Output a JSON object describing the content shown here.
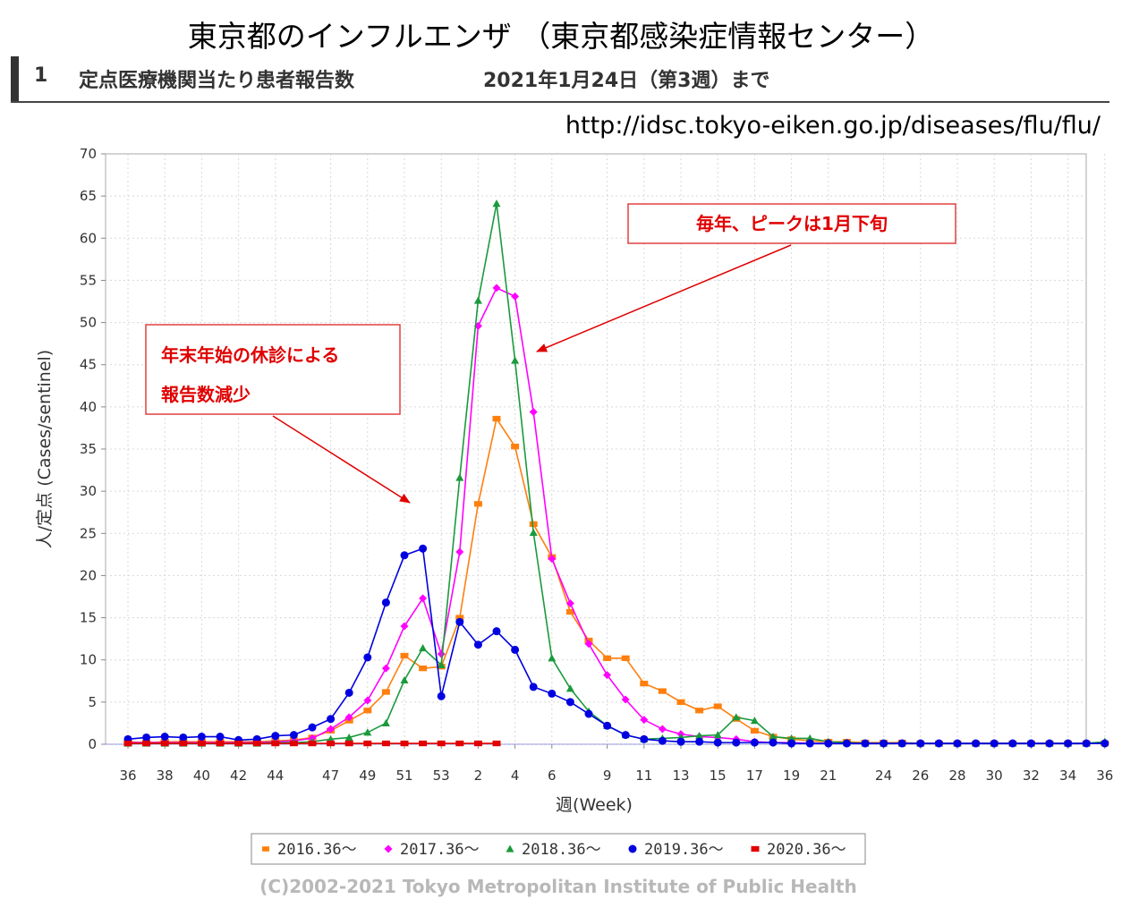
{
  "header": {
    "title": "東京都のインフルエンザ （東京都感染症情報センター）",
    "section_number": "1",
    "section_title": "定点医療機関当たり患者報告数",
    "section_date": "2021年1月24日（第3週）まで",
    "url": "http://idsc.tokyo-eiken.go.jp/diseases/flu/flu/"
  },
  "footer": {
    "copyright": "(C)2002-2021 Tokyo Metropolitan Institute of Public Health"
  },
  "chart_data": {
    "type": "line",
    "title": "",
    "xlabel": "週(Week)",
    "ylabel": "人/定点 (Cases/sentinel)",
    "ylim": [
      0,
      70
    ],
    "yticks": [
      0,
      5,
      10,
      15,
      20,
      25,
      30,
      35,
      40,
      45,
      50,
      55,
      60,
      65,
      70
    ],
    "xtick_labels": [
      "36",
      "38",
      "40",
      "42",
      "44",
      "47",
      "49",
      "51",
      "53",
      "2",
      "4",
      "6",
      "9",
      "11",
      "13",
      "15",
      "17",
      "19",
      "21",
      "24",
      "26",
      "28",
      "30",
      "32",
      "34",
      "36"
    ],
    "x_weeks": [
      "36",
      "37",
      "38",
      "39",
      "40",
      "41",
      "42",
      "43",
      "44",
      "45",
      "46",
      "47",
      "48",
      "49",
      "50",
      "51",
      "52",
      "53",
      "1",
      "2",
      "3",
      "4",
      "5",
      "6",
      "7",
      "8",
      "9",
      "10",
      "11",
      "12",
      "13",
      "14",
      "15",
      "16",
      "17",
      "18",
      "19",
      "20",
      "21",
      "22",
      "23",
      "24",
      "25",
      "26",
      "27",
      "28",
      "29",
      "30",
      "31",
      "32",
      "33",
      "34",
      "35",
      "36"
    ],
    "grid": true,
    "legend_position": "bottom",
    "annotations": [
      {
        "text_lines": [
          "年末年始の休診による",
          "報告数減少"
        ]
      },
      {
        "text_lines": [
          "毎年、ピークは1月下旬"
        ]
      }
    ],
    "series": [
      {
        "name": "2016.36～",
        "color": "#ff7f0e",
        "marker": "square",
        "values": [
          0.3,
          0.2,
          0.3,
          0.3,
          0.3,
          0.3,
          0.3,
          0.3,
          0.4,
          0.5,
          0.8,
          1.6,
          2.8,
          4.0,
          6.2,
          10.5,
          9.0,
          9.2,
          15.0,
          28.5,
          38.6,
          35.3,
          26.1,
          22.2,
          15.7,
          12.3,
          10.2,
          10.2,
          7.2,
          6.3,
          5.0,
          4.0,
          4.5,
          3.0,
          1.6,
          0.9,
          0.6,
          0.4,
          0.3,
          0.3,
          0.2,
          0.2,
          0.2,
          0.1,
          0.1,
          0.1,
          0.1,
          0.1,
          0.1,
          0.1,
          0.1,
          0.1,
          0.1,
          0.1
        ]
      },
      {
        "name": "2017.36～",
        "color": "#ff00ff",
        "marker": "diamond",
        "values": [
          0.2,
          0.2,
          0.2,
          0.2,
          0.2,
          0.2,
          0.2,
          0.2,
          0.3,
          0.4,
          0.7,
          1.8,
          3.2,
          5.2,
          9.0,
          14.0,
          17.3,
          10.7,
          22.8,
          49.6,
          54.1,
          53.1,
          39.4,
          22.0,
          16.7,
          11.9,
          8.2,
          5.3,
          2.9,
          1.8,
          1.2,
          0.9,
          0.8,
          0.6,
          0.3,
          0.2,
          0.2,
          0.1,
          0.1,
          0.1,
          0.1,
          0.1,
          0.1,
          0.1,
          0.1,
          0.1,
          0.1,
          0.1,
          0.1,
          0.1,
          0.1,
          0.1,
          0.1,
          0.1
        ]
      },
      {
        "name": "2018.36～",
        "color": "#1a9a3c",
        "marker": "triangle",
        "values": [
          0.1,
          0.1,
          0.1,
          0.1,
          0.1,
          0.1,
          0.1,
          0.1,
          0.2,
          0.2,
          0.3,
          0.6,
          0.8,
          1.4,
          2.5,
          7.6,
          11.4,
          9.4,
          31.6,
          52.6,
          64.1,
          45.5,
          25.1,
          10.2,
          6.6,
          3.9,
          2.2,
          1.1,
          0.6,
          0.7,
          0.8,
          1.0,
          1.1,
          3.2,
          2.8,
          0.9,
          0.7,
          0.7,
          0.3,
          0.2,
          0.1,
          0.1,
          0.1,
          0.1,
          0.1,
          0.1,
          0.1,
          0.1,
          0.1,
          0.1,
          0.1,
          0.1,
          0.1,
          0.3
        ]
      },
      {
        "name": "2019.36～",
        "color": "#0000e0",
        "marker": "circle",
        "values": [
          0.6,
          0.8,
          0.9,
          0.8,
          0.9,
          0.9,
          0.5,
          0.6,
          1.0,
          1.1,
          2.0,
          3.0,
          6.1,
          10.3,
          16.8,
          22.4,
          23.2,
          5.7,
          14.5,
          11.8,
          13.4,
          11.2,
          6.8,
          6.0,
          5.0,
          3.6,
          2.2,
          1.1,
          0.6,
          0.4,
          0.3,
          0.3,
          0.2,
          0.2,
          0.2,
          0.2,
          0.1,
          0.1,
          0.1,
          0.1,
          0.1,
          0.1,
          0.1,
          0.1,
          0.1,
          0.1,
          0.1,
          0.1,
          0.1,
          0.1,
          0.1,
          0.1,
          0.1,
          0.1
        ]
      },
      {
        "name": "2020.36～",
        "color": "#e00000",
        "marker": "square",
        "values": [
          0.1,
          0.1,
          0.1,
          0.1,
          0.1,
          0.1,
          0.1,
          0.1,
          0.1,
          0.1,
          0.1,
          0.1,
          0.1,
          0.1,
          0.1,
          0.1,
          0.1,
          0.1,
          0.1,
          0.1,
          0.1
        ]
      }
    ]
  }
}
